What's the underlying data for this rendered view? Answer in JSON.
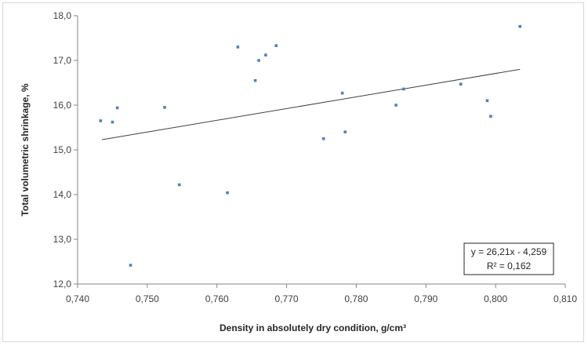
{
  "chart_data": {
    "type": "scatter",
    "title": "",
    "xlabel": "Density in absolutely dry condition, g/cm³",
    "ylabel": "Total volumetric shrinkage, %",
    "xlim": [
      0.74,
      0.81
    ],
    "ylim": [
      12.0,
      18.0
    ],
    "x_ticks": [
      "0,740",
      "0,750",
      "0,760",
      "0,770",
      "0,780",
      "0,790",
      "0,800",
      "0,810"
    ],
    "y_ticks": [
      "12,0",
      "13,0",
      "14,0",
      "15,0",
      "16,0",
      "17,0",
      "18,0"
    ],
    "grid": false,
    "legend": "none",
    "point_color": "#4f81bd",
    "trendline": {
      "slope": 26.21,
      "intercept": -4.259,
      "x_range": [
        0.7435,
        0.8035
      ],
      "equation": "y = 26,21x - 4,259",
      "r_squared": "R² = 0,162"
    },
    "series": [
      {
        "points": [
          {
            "x": 0.7433,
            "y": 15.65
          },
          {
            "x": 0.745,
            "y": 15.62
          },
          {
            "x": 0.7457,
            "y": 15.94
          },
          {
            "x": 0.7476,
            "y": 12.42
          },
          {
            "x": 0.7525,
            "y": 15.95
          },
          {
            "x": 0.7546,
            "y": 14.22
          },
          {
            "x": 0.7615,
            "y": 14.04
          },
          {
            "x": 0.763,
            "y": 17.3
          },
          {
            "x": 0.7655,
            "y": 16.55
          },
          {
            "x": 0.766,
            "y": 17.0
          },
          {
            "x": 0.767,
            "y": 17.12
          },
          {
            "x": 0.7685,
            "y": 17.33
          },
          {
            "x": 0.7753,
            "y": 15.25
          },
          {
            "x": 0.778,
            "y": 16.27
          },
          {
            "x": 0.7784,
            "y": 15.4
          },
          {
            "x": 0.7857,
            "y": 16.0
          },
          {
            "x": 0.7868,
            "y": 16.36
          },
          {
            "x": 0.795,
            "y": 16.47
          },
          {
            "x": 0.7988,
            "y": 16.1
          },
          {
            "x": 0.7993,
            "y": 15.75
          },
          {
            "x": 0.8035,
            "y": 17.76
          }
        ]
      }
    ]
  }
}
